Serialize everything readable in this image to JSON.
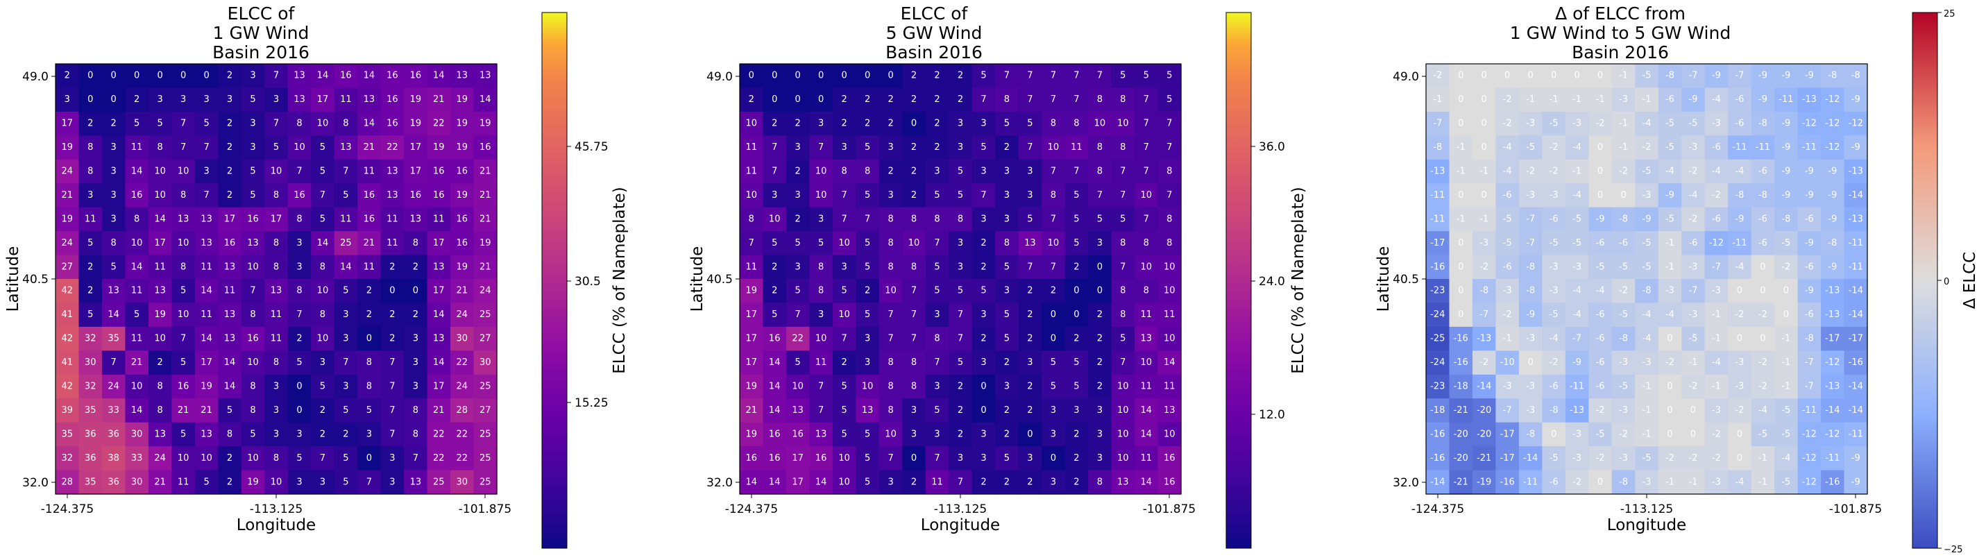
{
  "chart_data": [
    {
      "type": "heatmap",
      "title": [
        "ELCC of",
        "1 GW Wind",
        "Basin 2016"
      ],
      "xlabel": "Longitude",
      "ylabel": "Latitude",
      "xticks": [
        "-124.375",
        "-113.125",
        "-101.875"
      ],
      "yticks": [
        "49.0",
        "40.5",
        "32.0"
      ],
      "colorbar": {
        "label": "ELCC (% of Nameplate)",
        "ticks": [
          "15.25",
          "30.5",
          "45.75"
        ],
        "tick_values": [
          15.25,
          30.5,
          45.75
        ],
        "vmin": 0,
        "vmax": 61,
        "colormap": "plasma"
      },
      "values": [
        [
          2,
          0,
          0,
          0,
          0,
          0,
          0,
          2,
          3,
          7,
          13,
          14,
          16,
          14,
          16,
          16,
          14,
          13,
          13
        ],
        [
          3,
          0,
          0,
          2,
          3,
          3,
          3,
          3,
          5,
          3,
          13,
          17,
          11,
          13,
          16,
          19,
          21,
          19,
          14
        ],
        [
          17,
          2,
          2,
          5,
          5,
          7,
          5,
          2,
          3,
          7,
          8,
          10,
          8,
          14,
          16,
          19,
          22,
          19,
          19
        ],
        [
          19,
          8,
          3,
          11,
          8,
          7,
          7,
          2,
          3,
          5,
          10,
          5,
          13,
          21,
          22,
          17,
          19,
          19,
          16
        ],
        [
          24,
          8,
          3,
          14,
          10,
          10,
          3,
          2,
          5,
          10,
          7,
          5,
          7,
          11,
          13,
          17,
          16,
          16,
          21
        ],
        [
          21,
          3,
          3,
          16,
          10,
          8,
          7,
          2,
          5,
          8,
          16,
          7,
          5,
          16,
          13,
          16,
          16,
          19,
          21
        ],
        [
          19,
          11,
          3,
          8,
          14,
          13,
          13,
          17,
          16,
          17,
          8,
          5,
          11,
          16,
          11,
          13,
          11,
          16,
          21
        ],
        [
          24,
          5,
          8,
          10,
          17,
          10,
          13,
          16,
          13,
          8,
          3,
          14,
          25,
          21,
          11,
          8,
          17,
          16,
          19
        ],
        [
          27,
          2,
          5,
          14,
          11,
          8,
          11,
          13,
          10,
          8,
          3,
          8,
          14,
          11,
          2,
          2,
          13,
          19,
          21
        ],
        [
          42,
          2,
          13,
          11,
          13,
          5,
          14,
          11,
          7,
          13,
          8,
          10,
          5,
          2,
          0,
          0,
          17,
          21,
          24
        ],
        [
          41,
          5,
          14,
          5,
          19,
          10,
          11,
          13,
          8,
          11,
          7,
          8,
          3,
          2,
          2,
          2,
          14,
          24,
          25
        ],
        [
          42,
          32,
          35,
          11,
          10,
          7,
          14,
          13,
          16,
          11,
          2,
          10,
          3,
          0,
          2,
          3,
          13,
          30,
          27
        ],
        [
          41,
          30,
          7,
          21,
          2,
          5,
          17,
          14,
          10,
          8,
          5,
          3,
          7,
          8,
          7,
          3,
          14,
          22,
          30
        ],
        [
          42,
          32,
          24,
          10,
          8,
          16,
          19,
          14,
          8,
          3,
          0,
          5,
          3,
          8,
          7,
          3,
          17,
          24,
          25
        ],
        [
          39,
          35,
          33,
          14,
          8,
          21,
          21,
          5,
          8,
          3,
          0,
          2,
          5,
          5,
          7,
          8,
          21,
          28,
          27
        ],
        [
          35,
          36,
          36,
          30,
          13,
          5,
          13,
          8,
          5,
          3,
          3,
          2,
          2,
          3,
          7,
          8,
          22,
          22,
          25
        ],
        [
          32,
          36,
          38,
          33,
          24,
          10,
          10,
          2,
          10,
          8,
          5,
          7,
          5,
          0,
          3,
          7,
          22,
          22,
          25
        ],
        [
          28,
          35,
          36,
          30,
          21,
          11,
          5,
          2,
          19,
          10,
          3,
          3,
          5,
          7,
          3,
          13,
          25,
          30,
          25
        ]
      ]
    },
    {
      "type": "heatmap",
      "title": [
        "ELCC of",
        "5 GW Wind",
        "Basin 2016"
      ],
      "xlabel": "Longitude",
      "ylabel": "Latitude",
      "xticks": [
        "-124.375",
        "-113.125",
        "-101.875"
      ],
      "yticks": [
        "49.0",
        "40.5",
        "32.0"
      ],
      "colorbar": {
        "label": "ELCC (% of Nameplate)",
        "ticks": [
          "12.0",
          "24.0",
          "36.0"
        ],
        "tick_values": [
          12,
          24,
          36
        ],
        "vmin": 0,
        "vmax": 48,
        "colormap": "plasma"
      },
      "values": [
        [
          0,
          0,
          0,
          0,
          0,
          0,
          0,
          2,
          2,
          2,
          5,
          7,
          7,
          7,
          7,
          7,
          5,
          5,
          5
        ],
        [
          2,
          0,
          0,
          0,
          2,
          2,
          2,
          2,
          2,
          2,
          7,
          8,
          7,
          7,
          7,
          8,
          8,
          7,
          5
        ],
        [
          10,
          2,
          2,
          3,
          2,
          2,
          2,
          0,
          2,
          3,
          3,
          5,
          5,
          8,
          8,
          10,
          10,
          7,
          7
        ],
        [
          11,
          7,
          3,
          7,
          3,
          5,
          3,
          2,
          2,
          3,
          5,
          2,
          7,
          10,
          11,
          8,
          8,
          7,
          7
        ],
        [
          11,
          7,
          2,
          10,
          8,
          8,
          2,
          2,
          3,
          5,
          3,
          3,
          3,
          7,
          7,
          8,
          7,
          7,
          8
        ],
        [
          10,
          3,
          3,
          10,
          7,
          5,
          3,
          2,
          5,
          5,
          7,
          3,
          3,
          8,
          5,
          7,
          7,
          10,
          7
        ],
        [
          8,
          10,
          2,
          3,
          7,
          7,
          8,
          8,
          8,
          8,
          3,
          3,
          5,
          7,
          5,
          5,
          5,
          7,
          8
        ],
        [
          7,
          5,
          5,
          5,
          10,
          5,
          8,
          10,
          7,
          3,
          2,
          8,
          13,
          10,
          5,
          3,
          8,
          8,
          8
        ],
        [
          11,
          2,
          3,
          8,
          3,
          5,
          8,
          8,
          5,
          3,
          2,
          5,
          7,
          7,
          2,
          0,
          7,
          10,
          10
        ],
        [
          19,
          2,
          5,
          8,
          5,
          2,
          10,
          7,
          5,
          5,
          5,
          3,
          2,
          2,
          0,
          0,
          8,
          8,
          10
        ],
        [
          17,
          5,
          7,
          3,
          10,
          5,
          7,
          7,
          3,
          7,
          3,
          5,
          2,
          0,
          0,
          2,
          8,
          11,
          11
        ],
        [
          17,
          16,
          22,
          10,
          7,
          3,
          7,
          7,
          8,
          7,
          2,
          5,
          2,
          0,
          2,
          2,
          5,
          13,
          10
        ],
        [
          17,
          14,
          5,
          11,
          2,
          3,
          8,
          8,
          7,
          5,
          3,
          2,
          3,
          5,
          5,
          2,
          7,
          10,
          14
        ],
        [
          19,
          14,
          10,
          7,
          5,
          10,
          8,
          8,
          3,
          2,
          0,
          3,
          2,
          5,
          5,
          2,
          10,
          11,
          11
        ],
        [
          21,
          14,
          13,
          7,
          5,
          13,
          8,
          3,
          5,
          2,
          0,
          2,
          2,
          3,
          3,
          3,
          10,
          14,
          13
        ],
        [
          19,
          16,
          16,
          13,
          5,
          5,
          10,
          3,
          3,
          2,
          3,
          2,
          0,
          3,
          2,
          3,
          10,
          14,
          10
        ],
        [
          16,
          16,
          17,
          16,
          10,
          5,
          7,
          0,
          7,
          3,
          3,
          5,
          3,
          0,
          2,
          3,
          10,
          11,
          16
        ],
        [
          14,
          14,
          17,
          14,
          10,
          5,
          3,
          2,
          11,
          7,
          2,
          2,
          2,
          3,
          2,
          8,
          13,
          14,
          16
        ]
      ]
    },
    {
      "type": "heatmap",
      "title": [
        "Δ of ELCC from",
        "1 GW Wind to 5 GW Wind",
        "Basin 2016"
      ],
      "xlabel": "Longitude",
      "ylabel": "Latitude",
      "xticks": [
        "-124.375",
        "-113.125",
        "-101.875"
      ],
      "yticks": [
        "49.0",
        "40.5",
        "32.0"
      ],
      "colorbar": {
        "label": "Δ ELCC",
        "ticks": [
          "−25",
          "0",
          "25"
        ],
        "tick_values": [
          -25,
          0,
          25
        ],
        "vmin": -25,
        "vmax": 25,
        "colormap": "coolwarm"
      },
      "values": [
        [
          -2,
          0,
          0,
          0,
          0,
          0,
          0,
          0,
          -1,
          -5,
          -8,
          -7,
          -9,
          -7,
          -9,
          -9,
          -9,
          -8,
          -8
        ],
        [
          -1,
          0,
          0,
          -2,
          -1,
          -1,
          -1,
          -1,
          -3,
          -1,
          -6,
          -9,
          -4,
          -6,
          -9,
          -11,
          -13,
          -12,
          -9
        ],
        [
          -7,
          0,
          0,
          -2,
          -3,
          -5,
          -3,
          -2,
          -1,
          -4,
          -5,
          -5,
          -3,
          -6,
          -8,
          -9,
          -12,
          -12,
          -12
        ],
        [
          -8,
          -1,
          0,
          -4,
          -5,
          -2,
          -4,
          0,
          -1,
          -2,
          -5,
          -3,
          -6,
          -11,
          -11,
          -9,
          -11,
          -12,
          -9
        ],
        [
          -13,
          -1,
          -1,
          -4,
          -2,
          -2,
          -1,
          0,
          -2,
          -5,
          -4,
          -2,
          -4,
          -4,
          -6,
          -9,
          -9,
          -9,
          -13
        ],
        [
          -11,
          0,
          0,
          -6,
          -3,
          -3,
          -4,
          0,
          0,
          -3,
          -9,
          -4,
          -2,
          -8,
          -8,
          -9,
          -9,
          -9,
          -14
        ],
        [
          -11,
          -1,
          -1,
          -5,
          -7,
          -6,
          -5,
          -9,
          -8,
          -9,
          -5,
          -2,
          -6,
          -9,
          -6,
          -8,
          -6,
          -9,
          -13
        ],
        [
          -17,
          0,
          -3,
          -5,
          -7,
          -5,
          -5,
          -6,
          -6,
          -5,
          -1,
          -6,
          -12,
          -11,
          -6,
          -5,
          -9,
          -8,
          -11
        ],
        [
          -16,
          0,
          -2,
          -6,
          -8,
          -3,
          -3,
          -5,
          -5,
          -5,
          -1,
          -3,
          -7,
          -4,
          0,
          -2,
          -6,
          -9,
          -11
        ],
        [
          -23,
          0,
          -8,
          -3,
          -8,
          -3,
          -4,
          -4,
          -2,
          -8,
          -3,
          -7,
          -3,
          0,
          0,
          0,
          -9,
          -13,
          -14
        ],
        [
          -24,
          0,
          -7,
          -2,
          -9,
          -5,
          -4,
          -6,
          -5,
          -4,
          -4,
          -3,
          -1,
          -2,
          -2,
          0,
          -6,
          -13,
          -14
        ],
        [
          -25,
          -16,
          -13,
          -1,
          -3,
          -4,
          -7,
          -6,
          -8,
          -4,
          0,
          -5,
          -1,
          0,
          0,
          -1,
          -8,
          -17,
          -17
        ],
        [
          -24,
          -16,
          -2,
          -10,
          0,
          -2,
          -9,
          -6,
          -3,
          -3,
          -2,
          -1,
          -4,
          -3,
          -2,
          -1,
          -7,
          -12,
          -16
        ],
        [
          -23,
          -18,
          -14,
          -3,
          -3,
          -6,
          -11,
          -6,
          -5,
          -1,
          0,
          -2,
          -1,
          -3,
          -2,
          -1,
          -7,
          -13,
          -14
        ],
        [
          -18,
          -21,
          -20,
          -7,
          -3,
          -8,
          -13,
          -2,
          -3,
          -1,
          0,
          0,
          -3,
          -2,
          -4,
          -5,
          -11,
          -14,
          -14
        ],
        [
          -16,
          -20,
          -20,
          -17,
          -8,
          0,
          -3,
          -5,
          -2,
          -1,
          0,
          0,
          -2,
          0,
          -5,
          -5,
          -12,
          -12,
          -11
        ],
        [
          -16,
          -20,
          -21,
          -17,
          -14,
          -5,
          -3,
          -2,
          -3,
          -5,
          -2,
          -2,
          -2,
          0,
          -1,
          -4,
          -12,
          -11,
          -9
        ],
        [
          -14,
          -21,
          -19,
          -16,
          -11,
          -6,
          -2,
          0,
          -8,
          -3,
          -1,
          -1,
          -3,
          -4,
          -1,
          -5,
          -12,
          -16,
          -9
        ]
      ]
    }
  ]
}
